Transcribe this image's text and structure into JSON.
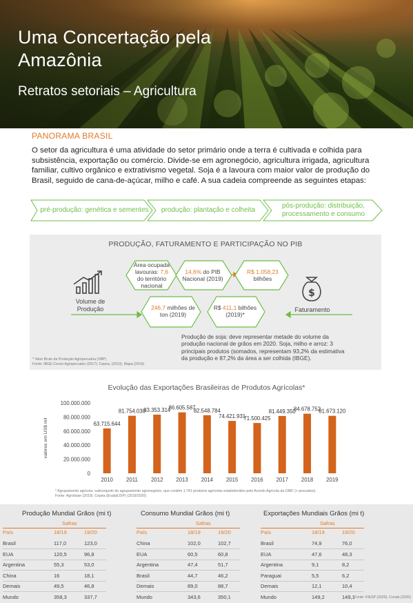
{
  "header": {
    "title": "Uma Concertação pela Amazônia",
    "subtitle": "Retratos setoriais –  Agricultura"
  },
  "panorama": {
    "label": "PANORAMA BRASIL",
    "text": "O setor da agricultura é uma atividade do setor primário onde a terra é cultivada e colhida para subsistência, exportação ou comércio. Divide-se em agronegócio, agricultura irrigada, agricultura familiar, cultivo orgânico e extrativismo vegetal. Soja é a lavoura com maior valor de produção do Brasil, seguido de cana-de-açúcar, milho e café. A sua cadeia compreende as seguintes etapas:",
    "stages": [
      "pré-produção: genética e sementes",
      "produção: plantação e colheita",
      "pós-produção: distribuição, processamento e consumo"
    ]
  },
  "infographic": {
    "title": "PRODUÇÃO, FATURAMENTO E PARTICIPAÇÃO NO PIB",
    "volume_label": "Volume de Produção",
    "faturamento_label": "Faturamento",
    "area": {
      "pre": "Área ocupada lavouras: ",
      "value": "7,6",
      "post": " do território nacional"
    },
    "pib": {
      "value": "14,6%",
      "post": " do PIB Nacional (2019)"
    },
    "brl": {
      "value": "R$ 1.058,23",
      "post": " bilhões"
    },
    "ton": {
      "value": "246,7",
      "post": " milhões de ton (2019)"
    },
    "vbp": {
      "pre": "R$ ",
      "value": "411,1",
      "post": " bilhões (2019)*"
    },
    "soja_text": "Produção de soja: deve representar metade do volume da produção nacional de grãos em 2020. Soja, milho e arroz: 3 principais produtos (somados, representam 93,2% da estimativa da produção e 87,2% da área a ser colhida (IBGE).",
    "footnote1": "* Valor Bruto da Produção Agropecuária (VBP)",
    "footnote2": "Fonte: IBGE-Censo Agropecuário (2017); Cepea, (2019), Mapa (2019)"
  },
  "chart_data": {
    "type": "bar",
    "title": "Evolução das Exportações Brasileiras de Produtos Agrícolas*",
    "ylabel": "valores em US$ mil",
    "categories": [
      "2010",
      "2011",
      "2012",
      "2013",
      "2014",
      "2015",
      "2016",
      "2017",
      "2018",
      "2019"
    ],
    "values": [
      63715644,
      81754030,
      83353314,
      86605587,
      82548784,
      74421931,
      71500425,
      81449350,
      84678752,
      81673120
    ],
    "value_labels": [
      "63.715.644",
      "81.754.030",
      "83.353.314",
      "86.605.587",
      "82.548.784",
      "74.421.931",
      "71.500.425",
      "81.449.350",
      "84.678.752",
      "81.673.120"
    ],
    "yticks": [
      "0",
      "20.000.000",
      "40.000.000",
      "60.000.000",
      "80.000.000",
      "100.000.000"
    ],
    "ylim": [
      0,
      100000000
    ],
    "bar_color": "#d4631c",
    "footnote1": "* Agrupamento agrícola: subconjunto do agrupamento agronegócio, que contém 1.741 produtos agrícolas estabelecidos pelo Acordo Agrícola da OMC (+ pescados).",
    "footnote2": "Fonte: Agrobase (2019); Cepea (Esalq/USP) (2019/2020)"
  },
  "tables": {
    "safras_label": "Safras",
    "col_pais": "País",
    "col_a": "18/19",
    "col_b": "19/20",
    "producao": {
      "title": "Produção Mundial Grãos (mi t)",
      "rows": [
        [
          "Brasil",
          "117,0",
          "123,0"
        ],
        [
          "EUA",
          "120,5",
          "96,8"
        ],
        [
          "Argentina",
          "55,3",
          "53,0"
        ],
        [
          "China",
          "16",
          "18,1"
        ],
        [
          "Demais",
          "49,5",
          "46,8"
        ],
        [
          "Mundo",
          "358,3",
          "337,7"
        ]
      ]
    },
    "consumo": {
      "title": "Consumo Mundial Grãos (mi t)",
      "rows": [
        [
          "China",
          "102,0",
          "102,7"
        ],
        [
          "EUA",
          "60,5",
          "60,8"
        ],
        [
          "Argentina",
          "47,4",
          "51,7"
        ],
        [
          "Brasil",
          "44,7",
          "46,2"
        ],
        [
          "Demais",
          "89,0",
          "88,7"
        ],
        [
          "Mundo",
          "343,6",
          "350,1"
        ]
      ]
    },
    "exportacoes": {
      "title": "Exportações Mundiais Grãos (mi t)",
      "rows": [
        [
          "Brasil",
          "74,9",
          "76,0"
        ],
        [
          "EUA",
          "47,6",
          "48,3"
        ],
        [
          "Argentina",
          "9,1",
          "8,2"
        ],
        [
          "Paraguai",
          "5,5",
          "6,2"
        ],
        [
          "Demais",
          "12,1",
          "10,4"
        ],
        [
          "Mundo",
          "149,2",
          "149,1"
        ]
      ]
    },
    "source": "Fonte: FIESP (2020), Conab (2020)"
  },
  "colors": {
    "accent_orange": "#e07a2a",
    "accent_green": "#6dbd45",
    "bar": "#d4631c"
  }
}
